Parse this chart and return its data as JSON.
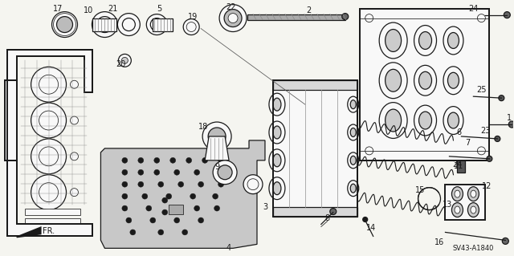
{
  "background_color": "#f5f5f0",
  "diagram_code": "SV43-A1840",
  "fig_width": 6.4,
  "fig_height": 3.19,
  "dpi": 100,
  "lc": "#1a1a1a",
  "lw_thick": 1.4,
  "lw_med": 0.9,
  "lw_thin": 0.55,
  "font_size_parts": 7,
  "font_size_code": 6,
  "gray_fill": "#d0d0d0",
  "white_fill": "#f8f8f8"
}
